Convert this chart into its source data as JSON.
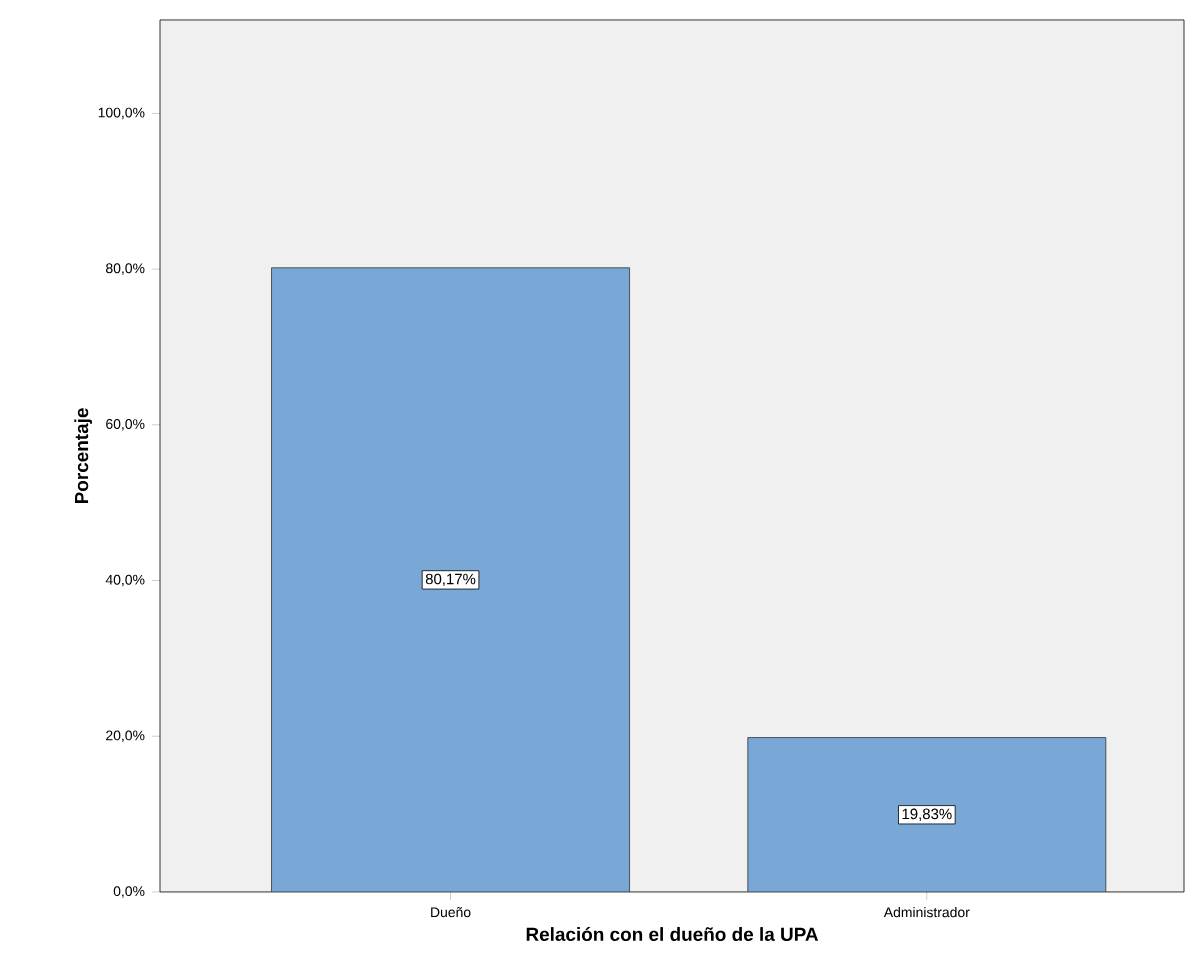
{
  "chart_data": {
    "type": "bar",
    "xlabel": "Relación con el dueño de la UPA",
    "ylabel": "Porcentaje",
    "categories": [
      "Dueño",
      "Administrador"
    ],
    "values": [
      80.17,
      19.83
    ],
    "value_labels": [
      "80,17%",
      "19,83%"
    ],
    "color": "#79a7d6",
    "ylim": [
      0,
      112
    ],
    "yticks": [
      {
        "value": 0,
        "label": "0,0%"
      },
      {
        "value": 20,
        "label": "20,0%"
      },
      {
        "value": 40,
        "label": "40,0%"
      },
      {
        "value": 60,
        "label": "60,0%"
      },
      {
        "value": 80,
        "label": "80,0%"
      },
      {
        "value": 100,
        "label": "100,0%"
      }
    ],
    "grid": false
  }
}
